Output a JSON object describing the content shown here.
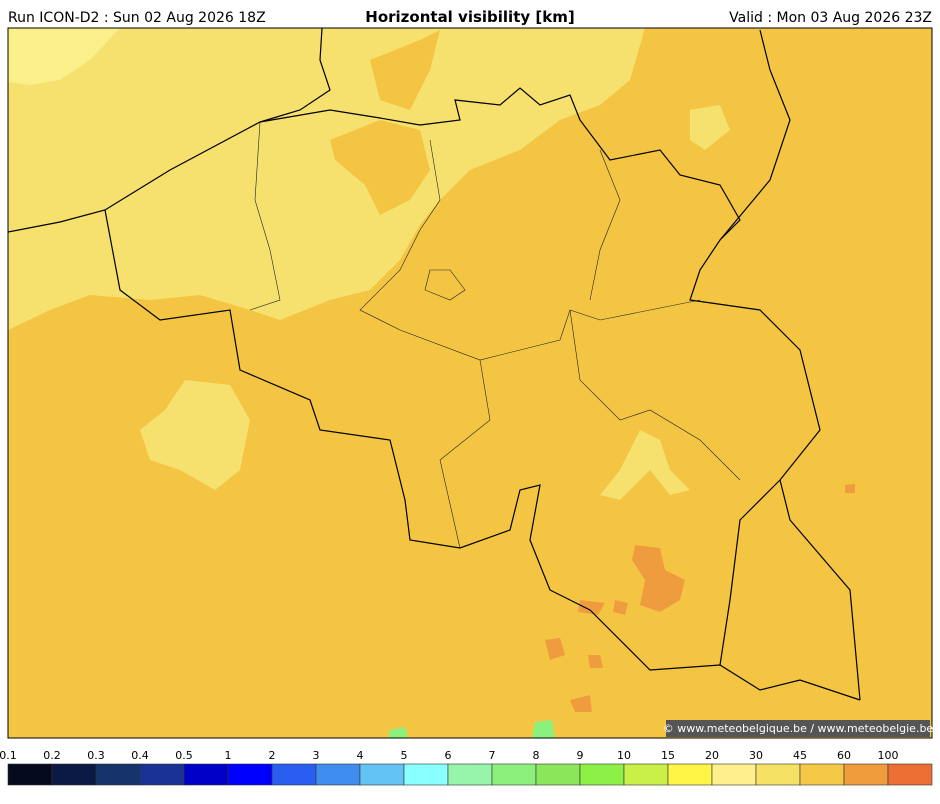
{
  "header": {
    "run": "Run ICON-D2 : Sun 02 Aug 2026 18Z",
    "title": "Horizontal visibility [km]",
    "valid": "Valid : Mon 03 Aug 2026 23Z"
  },
  "map": {
    "credit": "© www.meteobelgique.be / www.meteobelgie.be"
  },
  "legend": {
    "labels": [
      0.1,
      0.2,
      0.3,
      0.4,
      0.5,
      1,
      2,
      3,
      4,
      5,
      6,
      7,
      8,
      9,
      10,
      15,
      20,
      30,
      45,
      60,
      100
    ],
    "colors": [
      "#050a1e",
      "#0b1a45",
      "#17336b",
      "#1a3296",
      "#0000c8",
      "#0000ff",
      "#2a5ef0",
      "#3e8ef0",
      "#64c3f5",
      "#8affff",
      "#96f5aa",
      "#8cf07d",
      "#8ce65a",
      "#8cf046",
      "#c8f046",
      "#fff546",
      "#fff08c",
      "#f5e164",
      "#f5c846",
      "#f09b3c",
      "#eb6e32"
    ]
  }
}
